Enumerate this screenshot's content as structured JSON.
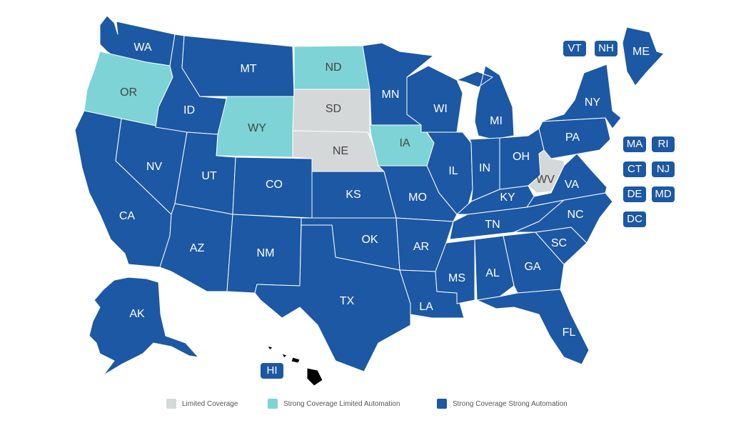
{
  "colors": {
    "limited": "#d4d8d8",
    "strong_limited": "#7dd3d6",
    "strong_strong": "#1c58a3",
    "label_dark": "#444444",
    "label_light": "#ffffff"
  },
  "legend": [
    {
      "key": "limited",
      "label": "Limited Coverage"
    },
    {
      "key": "strong_limited",
      "label": "Strong Coverage Limited Automation"
    },
    {
      "key": "strong_strong",
      "label": "Strong Coverage Strong Automation"
    }
  ],
  "states": [
    {
      "code": "WA",
      "category": "strong_strong"
    },
    {
      "code": "OR",
      "category": "strong_limited"
    },
    {
      "code": "CA",
      "category": "strong_strong"
    },
    {
      "code": "NV",
      "category": "strong_strong"
    },
    {
      "code": "ID",
      "category": "strong_strong"
    },
    {
      "code": "MT",
      "category": "strong_strong"
    },
    {
      "code": "WY",
      "category": "strong_limited"
    },
    {
      "code": "UT",
      "category": "strong_strong"
    },
    {
      "code": "AZ",
      "category": "strong_strong"
    },
    {
      "code": "CO",
      "category": "strong_strong"
    },
    {
      "code": "NM",
      "category": "strong_strong"
    },
    {
      "code": "ND",
      "category": "strong_limited"
    },
    {
      "code": "SD",
      "category": "limited"
    },
    {
      "code": "NE",
      "category": "limited"
    },
    {
      "code": "KS",
      "category": "strong_strong"
    },
    {
      "code": "OK",
      "category": "strong_strong"
    },
    {
      "code": "TX",
      "category": "strong_strong"
    },
    {
      "code": "MN",
      "category": "strong_strong"
    },
    {
      "code": "IA",
      "category": "strong_limited"
    },
    {
      "code": "MO",
      "category": "strong_strong"
    },
    {
      "code": "AR",
      "category": "strong_strong"
    },
    {
      "code": "LA",
      "category": "strong_strong"
    },
    {
      "code": "WI",
      "category": "strong_strong"
    },
    {
      "code": "IL",
      "category": "strong_strong"
    },
    {
      "code": "MI",
      "category": "strong_strong"
    },
    {
      "code": "IN",
      "category": "strong_strong"
    },
    {
      "code": "OH",
      "category": "strong_strong"
    },
    {
      "code": "KY",
      "category": "strong_strong"
    },
    {
      "code": "TN",
      "category": "strong_strong"
    },
    {
      "code": "MS",
      "category": "strong_strong"
    },
    {
      "code": "AL",
      "category": "strong_strong"
    },
    {
      "code": "GA",
      "category": "strong_strong"
    },
    {
      "code": "FL",
      "category": "strong_strong"
    },
    {
      "code": "SC",
      "category": "strong_strong"
    },
    {
      "code": "NC",
      "category": "strong_strong"
    },
    {
      "code": "VA",
      "category": "strong_strong"
    },
    {
      "code": "WV",
      "category": "limited"
    },
    {
      "code": "PA",
      "category": "strong_strong"
    },
    {
      "code": "NY",
      "category": "strong_strong"
    },
    {
      "code": "ME",
      "category": "strong_strong"
    },
    {
      "code": "AK",
      "category": "strong_strong"
    }
  ],
  "small_states": [
    {
      "code": "VT",
      "category": "strong_strong"
    },
    {
      "code": "NH",
      "category": "strong_strong"
    },
    {
      "code": "MA",
      "category": "strong_strong"
    },
    {
      "code": "RI",
      "category": "strong_strong"
    },
    {
      "code": "CT",
      "category": "strong_strong"
    },
    {
      "code": "NJ",
      "category": "strong_strong"
    },
    {
      "code": "DE",
      "category": "strong_strong"
    },
    {
      "code": "MD",
      "category": "strong_strong"
    },
    {
      "code": "DC",
      "category": "strong_strong"
    },
    {
      "code": "HI",
      "category": "strong_strong"
    }
  ]
}
